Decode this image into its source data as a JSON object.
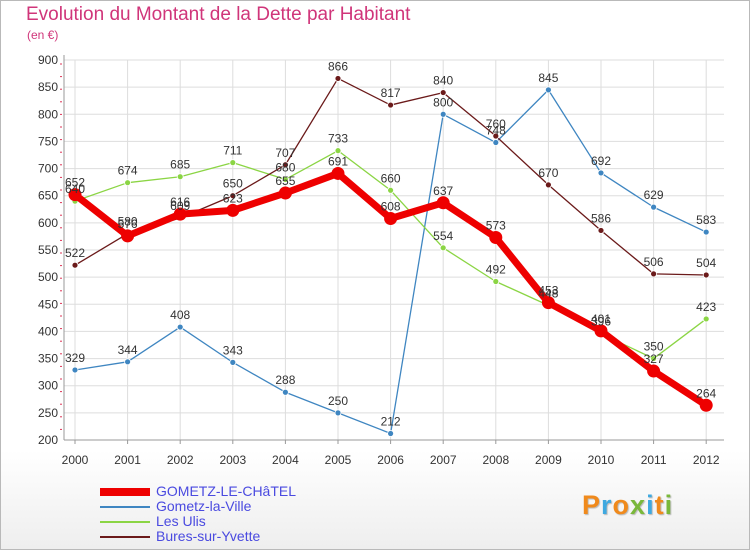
{
  "header": {
    "title": "Evolution du Montant de la Dette par Habitant",
    "subtitle": "(en €)"
  },
  "logo": {
    "text": "Proxiti",
    "colors": [
      "#f08a1c",
      "#3fa9e0",
      "#f08a1c",
      "#7ab83a",
      "#3fa9e0",
      "#f08a1c",
      "#7ab83a"
    ]
  },
  "chart_data": {
    "type": "line",
    "title": "Evolution du Montant de la Dette par Habitant",
    "ylabel": "(en €)",
    "xlabel": "",
    "x": [
      "2000",
      "2001",
      "2002",
      "2003",
      "2004",
      "2005",
      "2006",
      "2007",
      "2008",
      "2009",
      "2010",
      "2011",
      "2012"
    ],
    "ylim": [
      200,
      900
    ],
    "yticks": [
      200,
      250,
      300,
      350,
      400,
      450,
      500,
      550,
      600,
      650,
      700,
      750,
      800,
      850,
      900
    ],
    "grid": true,
    "legend_position": "bottom-left",
    "series": [
      {
        "name": "GOMETZ-LE-CHâTEL",
        "color": "#ee0000",
        "values": [
          652,
          576,
          616,
          623,
          655,
          691,
          608,
          637,
          573,
          453,
          401,
          327,
          264
        ]
      },
      {
        "name": "Gometz-la-Ville",
        "color": "#3f86c1",
        "values": [
          329,
          344,
          408,
          343,
          288,
          250,
          212,
          800,
          748,
          845,
          692,
          629,
          583
        ]
      },
      {
        "name": "Les Ulis",
        "color": "#8bd544",
        "values": [
          640,
          674,
          685,
          711,
          680,
          733,
          660,
          554,
          492,
          448,
          396,
          350,
          423
        ]
      },
      {
        "name": "Bures-sur-Yvette",
        "color": "#6b1a1a",
        "values": [
          522,
          580,
          609,
          650,
          707,
          866,
          817,
          840,
          760,
          670,
          586,
          506,
          504
        ]
      }
    ]
  }
}
